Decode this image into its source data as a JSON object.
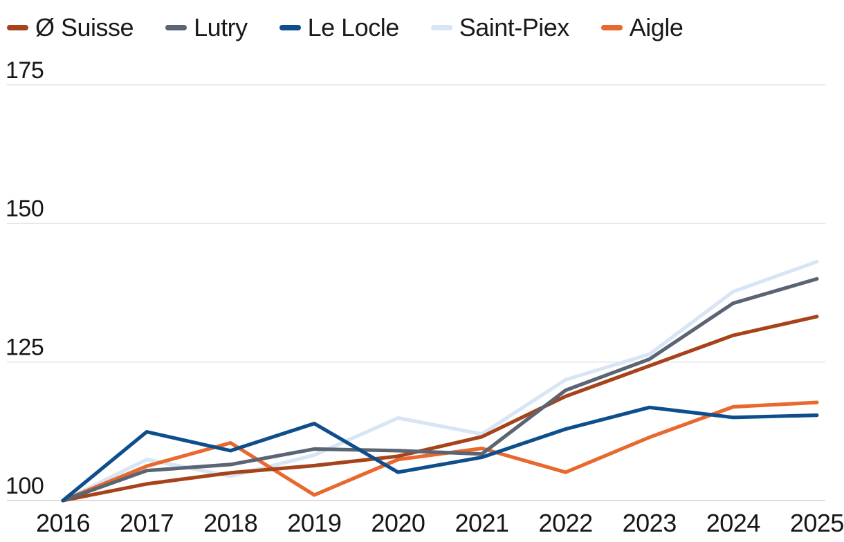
{
  "legend": {
    "items": [
      {
        "label": "Ø Suisse",
        "color": "#A6431A"
      },
      {
        "label": "Lutry",
        "color": "#5A6473"
      },
      {
        "label": "Le Locle",
        "color": "#0E4E8D"
      },
      {
        "label": "Saint-Piex",
        "color": "#D7E5F4"
      },
      {
        "label": "Aigle",
        "color": "#E8682D"
      }
    ]
  },
  "chart_data": {
    "type": "line",
    "title": "",
    "xlabel": "",
    "ylabel": "",
    "x": [
      2016,
      2017,
      2018,
      2019,
      2020,
      2021,
      2022,
      2023,
      2024,
      2025
    ],
    "x_tick_labels": [
      "2016",
      "2017",
      "2018",
      "2019",
      "2020",
      "2021",
      "2022",
      "2023",
      "2024",
      "2025"
    ],
    "y_ticks": [
      100,
      125,
      150,
      175
    ],
    "y_tick_labels": [
      "100",
      "125",
      "150",
      "175"
    ],
    "ylim": [
      97,
      180
    ],
    "grid": "horizontal",
    "legend_position": "top-left",
    "series": [
      {
        "name": "Ø Suisse",
        "color": "#A6431A",
        "values": [
          100,
          103.0,
          105.0,
          106.3,
          108.0,
          111.5,
          118.8,
          124.3,
          129.8,
          133.2
        ]
      },
      {
        "name": "Lutry",
        "color": "#5A6473",
        "values": [
          100,
          105.4,
          106.5,
          109.3,
          109.0,
          108.4,
          119.9,
          125.5,
          135.6,
          140.0
        ]
      },
      {
        "name": "Le Locle",
        "color": "#0E4E8D",
        "values": [
          100,
          112.4,
          109.0,
          113.9,
          105.1,
          107.8,
          112.9,
          116.8,
          115.0,
          115.4
        ]
      },
      {
        "name": "Saint-Piex",
        "color": "#D7E5F4",
        "values": [
          100,
          107.4,
          104.4,
          108.2,
          114.9,
          112.0,
          121.8,
          126.4,
          137.7,
          143.1
        ]
      },
      {
        "name": "Aigle",
        "color": "#E8682D",
        "values": [
          100,
          106.2,
          110.4,
          101.0,
          107.4,
          109.4,
          105.1,
          111.4,
          116.9,
          117.7
        ]
      }
    ],
    "draw_order": [
      "Saint-Piex",
      "Aigle",
      "Ø Suisse",
      "Lutry",
      "Le Locle"
    ]
  }
}
